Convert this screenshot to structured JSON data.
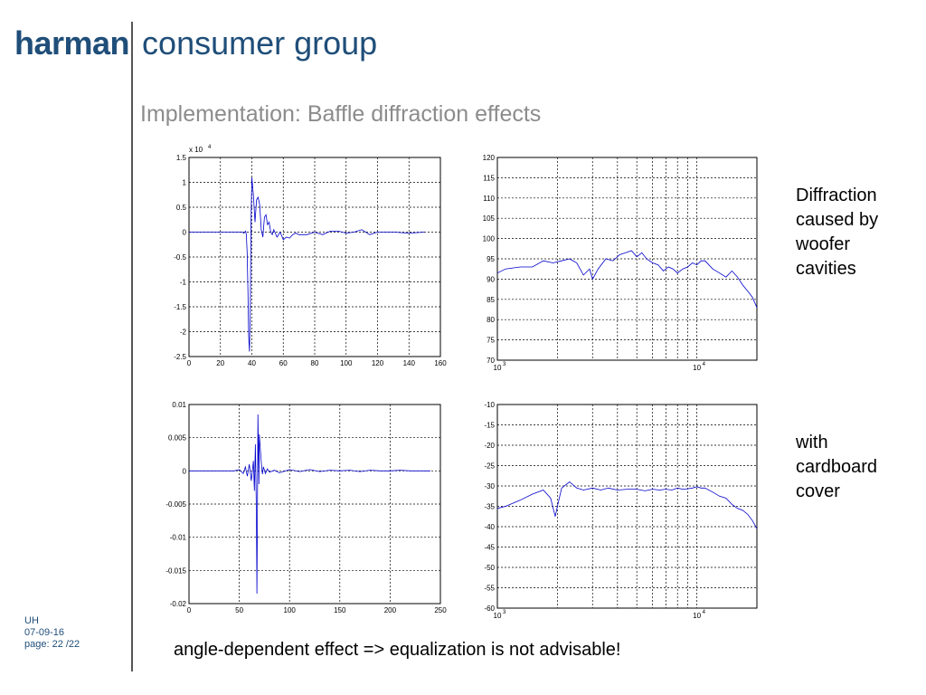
{
  "header": {
    "logo_bold": "harman",
    "logo_light": "consumer group"
  },
  "title": "Implementation: Baffle diffraction effects",
  "side_notes": {
    "top": [
      "Diffraction",
      "caused by",
      "woofer",
      "cavities"
    ],
    "bottom": [
      "with",
      "cardboard",
      "cover"
    ]
  },
  "footer": {
    "author": "UH",
    "date": "07-09-16",
    "page": "page: 22 /22"
  },
  "conclusion": "angle-dependent effect => equalization is not advisable!",
  "chart_data": [
    {
      "type": "line",
      "scale_label": "x 10",
      "scale_exp": "4",
      "xlim": [
        0,
        160
      ],
      "ylim": [
        -2.5,
        1.5
      ],
      "xticks": [
        "0",
        "20",
        "40",
        "60",
        "80",
        "100",
        "120",
        "140",
        "160"
      ],
      "yticks": [
        "1.5",
        "1",
        "0.5",
        "0",
        "-0.5",
        "-1",
        "-1.5",
        "-2",
        "-2.5"
      ],
      "color": "#0000cc",
      "x": [
        0,
        34,
        35,
        36,
        36.5,
        37,
        37.5,
        38,
        38.5,
        39,
        39.5,
        40,
        41,
        42,
        43,
        44,
        45,
        46,
        47,
        48,
        49,
        50,
        51,
        52,
        53,
        54,
        56,
        58,
        60,
        62,
        64,
        66,
        68,
        70,
        75,
        80,
        85,
        90,
        95,
        100,
        105,
        110,
        115,
        120,
        130,
        140,
        150
      ],
      "y": [
        0,
        0,
        -0.02,
        0.02,
        -0.05,
        -0.4,
        -1.2,
        -2.1,
        -2.4,
        -1.5,
        0.2,
        1.1,
        0.75,
        0.2,
        0.65,
        0.7,
        0.55,
        0.05,
        -0.1,
        0.3,
        0.35,
        0.15,
        0.2,
        0.0,
        -0.05,
        0.05,
        -0.1,
        0.0,
        -0.15,
        -0.1,
        -0.12,
        -0.05,
        -0.02,
        -0.05,
        -0.05,
        0.0,
        -0.05,
        0.02,
        0.02,
        -0.02,
        0.0,
        0.05,
        -0.05,
        0.0,
        0.0,
        -0.02,
        0.0
      ]
    },
    {
      "type": "line",
      "xscale": "log",
      "xlim": [
        1000,
        20000
      ],
      "ylim": [
        70,
        120
      ],
      "xtick_labels": [
        {
          "base": "10",
          "exp": "3",
          "x": 1000
        },
        {
          "base": "10",
          "exp": "4",
          "x": 10000
        }
      ],
      "xgrid": [
        2000,
        3000,
        4000,
        5000,
        6000,
        7000,
        8000,
        9000,
        10000
      ],
      "yticks": [
        "120",
        "115",
        "110",
        "105",
        "100",
        "95",
        "90",
        "85",
        "80",
        "75",
        "70"
      ],
      "color": "#0000cc",
      "x": [
        1000,
        1100,
        1300,
        1500,
        1700,
        1900,
        2100,
        2300,
        2500,
        2700,
        2900,
        3000,
        3200,
        3500,
        3800,
        4100,
        4400,
        4700,
        5000,
        5300,
        5600,
        6000,
        6400,
        6800,
        7200,
        7600,
        8000,
        8500,
        9000,
        9500,
        10000,
        10500,
        11000,
        12000,
        13000,
        14000,
        15000,
        16000,
        17000,
        18000,
        19000,
        20000
      ],
      "y": [
        91.5,
        92.5,
        93,
        93,
        94.5,
        94,
        94.5,
        95,
        94,
        91,
        92.5,
        90,
        92.5,
        95,
        94.5,
        96,
        96.5,
        97,
        95.5,
        96.5,
        95,
        94,
        93.5,
        92,
        93,
        92.5,
        91.5,
        92.5,
        93,
        94,
        93.5,
        94.5,
        94.5,
        92.5,
        91.5,
        90.5,
        92,
        90.5,
        88.5,
        87,
        85.5,
        83
      ]
    },
    {
      "type": "line",
      "xlim": [
        0,
        250
      ],
      "ylim": [
        -0.02,
        0.01
      ],
      "xticks": [
        "0",
        "50",
        "100",
        "150",
        "200",
        "250"
      ],
      "yticks": [
        "0.01",
        "0.005",
        "0",
        "-0.005",
        "-0.01",
        "-0.015",
        "-0.02"
      ],
      "color": "#0000cc",
      "x": [
        0,
        45,
        50,
        54,
        56,
        58,
        60,
        62,
        64,
        65,
        66,
        67,
        67.5,
        68,
        68.5,
        69,
        69.5,
        70,
        71,
        72,
        73,
        74,
        76,
        78,
        80,
        85,
        90,
        100,
        110,
        120,
        130,
        140,
        150,
        160,
        170,
        180,
        190,
        200,
        210,
        220,
        230,
        240
      ],
      "y": [
        0,
        0,
        0.0002,
        -0.0004,
        0.0006,
        -0.0008,
        0.001,
        -0.0015,
        0.0015,
        -0.003,
        0.004,
        -0.006,
        -0.0185,
        -0.008,
        0.0085,
        0.004,
        -0.002,
        0.0055,
        0.003,
        0.001,
        -0.0005,
        0.0006,
        -0.0004,
        0.0003,
        -0.0002,
        0.0001,
        -0.0003,
        0.0002,
        -0.0001,
        0.0002,
        -0.0001,
        0.0001,
        0.0,
        0.0001,
        -0.0001,
        0.0001,
        0.0,
        0.0,
        0.0001,
        0.0,
        0.0,
        0.0
      ]
    },
    {
      "type": "line",
      "xscale": "log",
      "xlim": [
        1000,
        20000
      ],
      "ylim": [
        -60,
        -10
      ],
      "xtick_labels": [
        {
          "base": "10",
          "exp": "3",
          "x": 1000
        },
        {
          "base": "10",
          "exp": "4",
          "x": 10000
        }
      ],
      "xgrid": [
        2000,
        3000,
        4000,
        5000,
        6000,
        7000,
        8000,
        9000,
        10000
      ],
      "yticks": [
        "-10",
        "-15",
        "-20",
        "-25",
        "-30",
        "-35",
        "-40",
        "-45",
        "-50",
        "-55",
        "-60"
      ],
      "color": "#0000cc",
      "x": [
        1000,
        1100,
        1300,
        1500,
        1700,
        1850,
        1950,
        2000,
        2100,
        2300,
        2500,
        2700,
        3000,
        3300,
        3600,
        4000,
        4500,
        5000,
        5500,
        6000,
        6500,
        7000,
        7500,
        8000,
        8500,
        9000,
        9500,
        10000,
        10500,
        11000,
        12000,
        13000,
        14000,
        15000,
        16000,
        17000,
        18000,
        19000,
        20000
      ],
      "y": [
        -35.5,
        -35,
        -33.5,
        -32,
        -31,
        -33,
        -37.5,
        -35,
        -30.5,
        -29,
        -30.5,
        -31,
        -30.5,
        -31,
        -30.5,
        -31,
        -30.8,
        -30.8,
        -31.2,
        -30.8,
        -31,
        -30.8,
        -31,
        -30.5,
        -30.8,
        -30.7,
        -30.5,
        -30.2,
        -30.5,
        -30.5,
        -31.5,
        -32.5,
        -33,
        -34.5,
        -35.5,
        -36,
        -37,
        -38.5,
        -40.5
      ]
    }
  ]
}
